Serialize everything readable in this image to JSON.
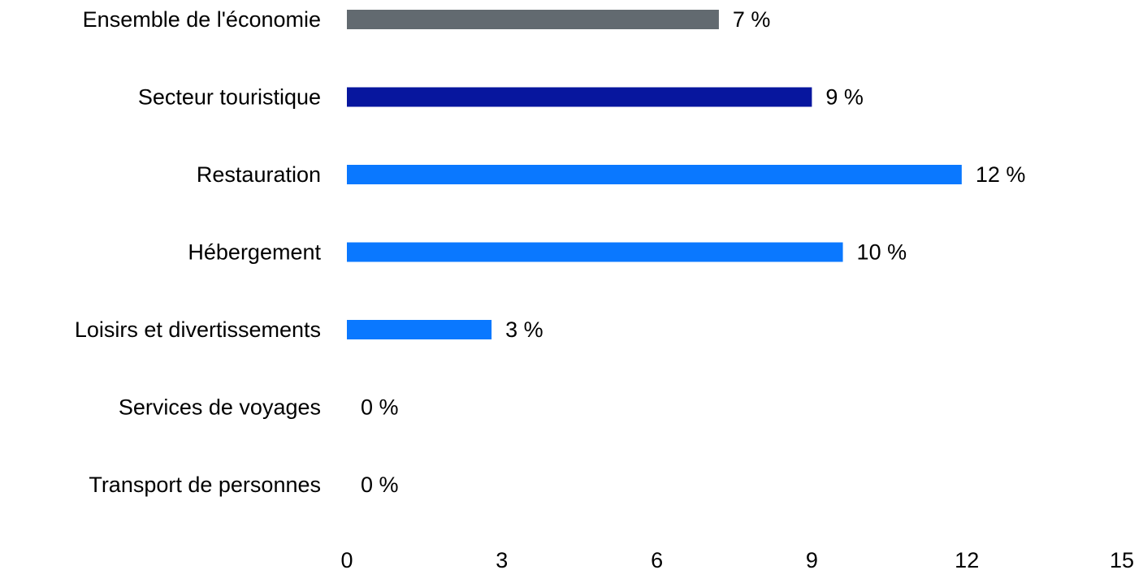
{
  "chart_data": {
    "type": "bar",
    "orientation": "horizontal",
    "categories": [
      "Ensemble de l'économie",
      "Secteur touristique",
      "Restauration",
      "Hébergement",
      "Loisirs et divertissements",
      "Services de voyages",
      "Transport de personnes"
    ],
    "values": [
      7.2,
      9,
      11.9,
      9.6,
      2.8,
      0,
      0
    ],
    "value_labels": [
      "7 %",
      "9 %",
      "12 %",
      "10 %",
      "3 %",
      "0 %",
      "0 %"
    ],
    "bar_colors": [
      "#626a70",
      "#07169e",
      "#0a78ff",
      "#0a78ff",
      "#0a78ff",
      "#0a78ff",
      "#0a78ff"
    ],
    "xlim": [
      0,
      15
    ],
    "xticks": [
      0,
      3,
      6,
      9,
      12,
      15
    ],
    "tick_labels": [
      "0",
      "3",
      "6",
      "9",
      "12",
      "15"
    ],
    "grid": false,
    "legend": "none",
    "title": "",
    "xlabel": "",
    "ylabel": ""
  }
}
